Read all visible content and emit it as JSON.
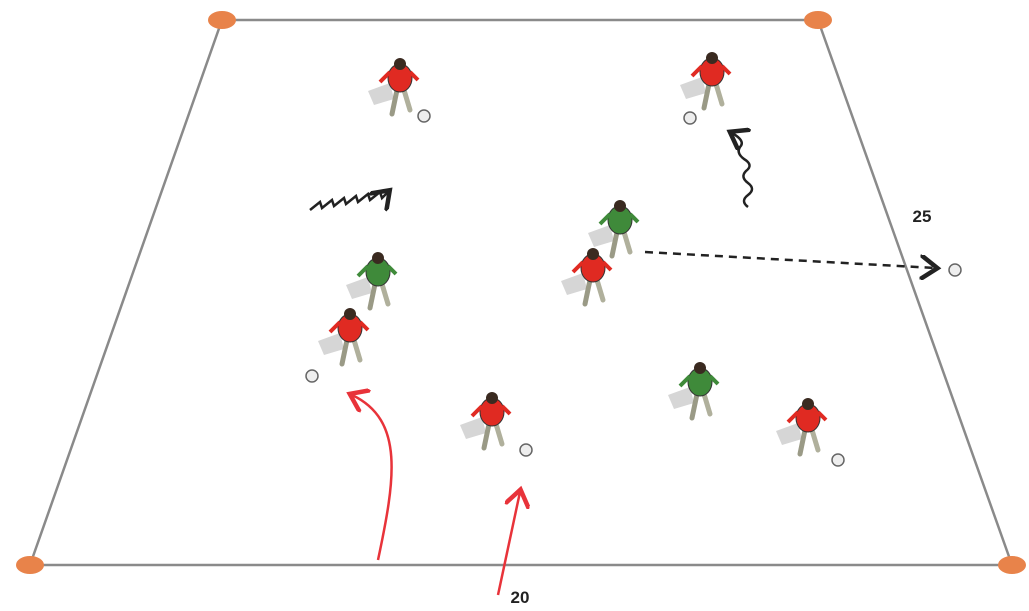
{
  "field": {
    "side_label": "25",
    "bottom_label": "20"
  }
}
